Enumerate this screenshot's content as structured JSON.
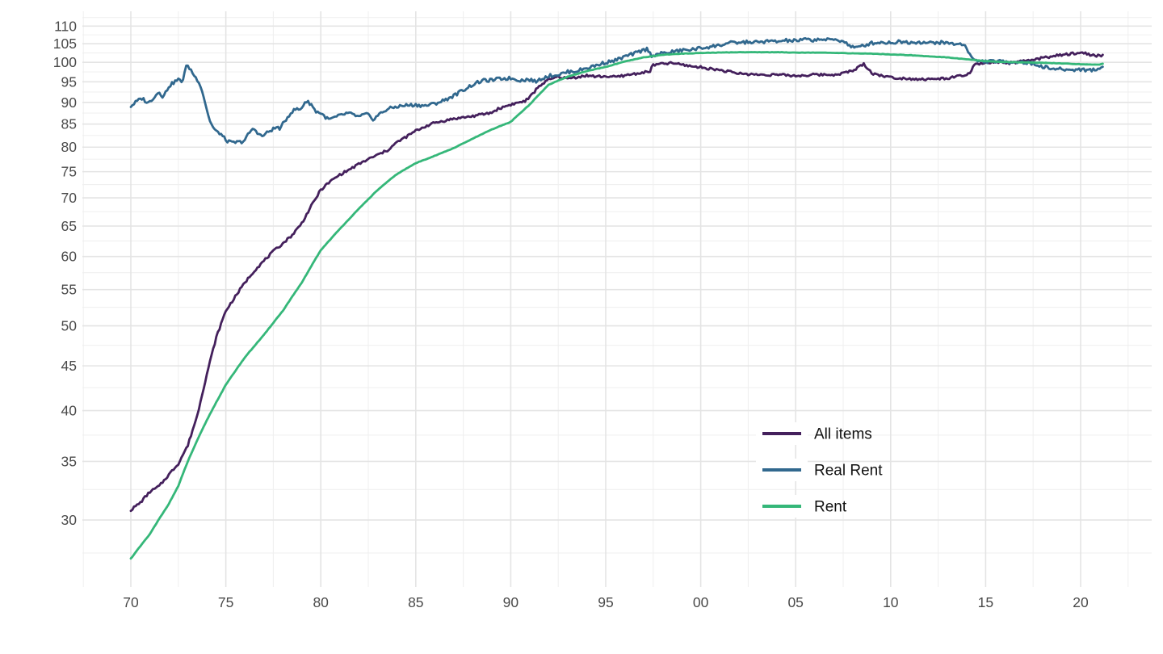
{
  "chart_data": {
    "type": "line",
    "title": "",
    "xlabel": "",
    "ylabel": "",
    "x_axis": {
      "tick_years": [
        1970,
        1975,
        1980,
        1985,
        1990,
        1995,
        2000,
        2005,
        2010,
        2015,
        2020
      ],
      "tick_labels": [
        "70",
        "75",
        "80",
        "85",
        "90",
        "95",
        "00",
        "05",
        "10",
        "15",
        "20"
      ],
      "minor_tick_years": [
        1967.5,
        1972.5,
        1977.5,
        1982.5,
        1987.5,
        1992.5,
        1997.5,
        2002.5,
        2007.5,
        2012.5,
        2017.5,
        2022.5
      ],
      "range": [
        1967.45,
        2023.55
      ]
    },
    "y_axis": {
      "scale": "log",
      "tick_values": [
        30,
        35,
        40,
        45,
        50,
        55,
        60,
        65,
        70,
        75,
        80,
        85,
        90,
        95,
        100,
        105,
        110
      ],
      "tick_labels": [
        "30",
        "35",
        "40",
        "45",
        "50",
        "55",
        "60",
        "65",
        "70",
        "75",
        "80",
        "85",
        "90",
        "95",
        "100",
        "105",
        "110"
      ],
      "minor_tick_values": [
        27.5,
        32.5,
        37.5,
        42.5,
        47.5,
        52.5,
        57.5,
        62.5,
        67.5,
        72.5,
        77.5,
        82.5,
        87.5,
        92.5,
        97.5,
        102.5,
        107.5,
        112.5
      ],
      "range": [
        25.2,
        115.9
      ]
    },
    "grid": {
      "major_color": "#e4e4e4",
      "minor_color": "#f0f0f0"
    },
    "axis_text_color": "#4a4a4a",
    "legend": {
      "position": "inside-right",
      "text_color": "#111111",
      "key_background": "#ffffff"
    },
    "series": [
      {
        "name": "All items",
        "color": "#44205c",
        "noise_pct": 0.32,
        "noise_seed": 7,
        "points": [
          [
            1970,
            30.8
          ],
          [
            1970.5,
            31.4
          ],
          [
            1971,
            32.3
          ],
          [
            1971.5,
            32.8
          ],
          [
            1972,
            33.8
          ],
          [
            1972.5,
            34.8
          ],
          [
            1973,
            36.5
          ],
          [
            1973.5,
            39.5
          ],
          [
            1974,
            44.0
          ],
          [
            1974.5,
            48.5
          ],
          [
            1975,
            52.0
          ],
          [
            1975.5,
            54.0
          ],
          [
            1976,
            56.0
          ],
          [
            1976.5,
            57.8
          ],
          [
            1977,
            59.3
          ],
          [
            1977.5,
            60.8
          ],
          [
            1978,
            62.1
          ],
          [
            1978.5,
            63.5
          ],
          [
            1979,
            65.5
          ],
          [
            1979.5,
            68.5
          ],
          [
            1980,
            71.5
          ],
          [
            1980.5,
            73.1
          ],
          [
            1981,
            74.4
          ],
          [
            1981.5,
            75.4
          ],
          [
            1982,
            76.5
          ],
          [
            1982.5,
            77.5
          ],
          [
            1983,
            78.4
          ],
          [
            1983.5,
            79.3
          ],
          [
            1984,
            81.0
          ],
          [
            1984.5,
            82.2
          ],
          [
            1985,
            83.5
          ],
          [
            1985.5,
            84.5
          ],
          [
            1986,
            85.3
          ],
          [
            1987,
            86.2
          ],
          [
            1988,
            86.8
          ],
          [
            1989,
            87.6
          ],
          [
            1989.3,
            88.4
          ],
          [
            1990,
            89.5
          ],
          [
            1990.75,
            90.3
          ],
          [
            1991,
            91.2
          ],
          [
            1991.5,
            94.0
          ],
          [
            1992,
            95.5
          ],
          [
            1992.5,
            96.3
          ],
          [
            1993,
            95.8
          ],
          [
            1993.5,
            96.2
          ],
          [
            1994,
            96.6
          ],
          [
            1994.5,
            96.3
          ],
          [
            1995,
            96.4
          ],
          [
            1995.5,
            96.2
          ],
          [
            1996,
            96.6
          ],
          [
            1996.5,
            97.0
          ],
          [
            1997,
            97.4
          ],
          [
            1997.3,
            97.5
          ],
          [
            1997.5,
            99.3
          ],
          [
            1998,
            99.6
          ],
          [
            1998.5,
            99.8
          ],
          [
            1999,
            99.4
          ],
          [
            1999.5,
            99.0
          ],
          [
            2000,
            98.7
          ],
          [
            2001,
            98.0
          ],
          [
            2002,
            97.1
          ],
          [
            2003,
            96.8
          ],
          [
            2004,
            96.8
          ],
          [
            2005,
            96.5
          ],
          [
            2006,
            96.8
          ],
          [
            2007,
            96.8
          ],
          [
            2007.5,
            97.2
          ],
          [
            2008,
            97.8
          ],
          [
            2008.6,
            99.6
          ],
          [
            2009,
            97.2
          ],
          [
            2009.5,
            96.6
          ],
          [
            2010,
            96.1
          ],
          [
            2011,
            95.8
          ],
          [
            2012,
            95.6
          ],
          [
            2013,
            95.9
          ],
          [
            2013.5,
            96.3
          ],
          [
            2014,
            96.8
          ],
          [
            2014.2,
            97.2
          ],
          [
            2014.4,
            99.3
          ],
          [
            2015,
            99.9
          ],
          [
            2015.5,
            100.0
          ],
          [
            2016,
            99.8
          ],
          [
            2016.5,
            99.9
          ],
          [
            2017,
            100.3
          ],
          [
            2017.5,
            100.6
          ],
          [
            2018,
            101.2
          ],
          [
            2018.5,
            101.6
          ],
          [
            2019,
            101.9
          ],
          [
            2019.8,
            102.5
          ],
          [
            2020.3,
            102.4
          ],
          [
            2020.8,
            101.6
          ],
          [
            2021,
            101.9
          ],
          [
            2021.17,
            101.8
          ]
        ]
      },
      {
        "name": "Real Rent",
        "color": "#31688e",
        "noise_pct": 0.45,
        "noise_seed": 3,
        "points": [
          [
            1970,
            89.1
          ],
          [
            1970.3,
            90.2
          ],
          [
            1970.6,
            91.0
          ],
          [
            1970.9,
            89.8
          ],
          [
            1971,
            90.2
          ],
          [
            1971.5,
            92.6
          ],
          [
            1971.7,
            91.2
          ],
          [
            1972,
            93.9
          ],
          [
            1972.3,
            95.0
          ],
          [
            1972.5,
            95.6
          ],
          [
            1972.7,
            94.8
          ],
          [
            1972.9,
            99.0
          ],
          [
            1973.1,
            98.5
          ],
          [
            1973.4,
            96.1
          ],
          [
            1973.6,
            95.0
          ],
          [
            1973.8,
            92.0
          ],
          [
            1974.1,
            86.5
          ],
          [
            1974.3,
            84.4
          ],
          [
            1974.5,
            83.3
          ],
          [
            1974.7,
            83.0
          ],
          [
            1974.9,
            82.0
          ],
          [
            1975,
            81.5
          ],
          [
            1975.3,
            80.9
          ],
          [
            1975.5,
            81.0
          ],
          [
            1975.8,
            81.1
          ],
          [
            1976,
            81.5
          ],
          [
            1976.3,
            83.5
          ],
          [
            1976.5,
            83.9
          ],
          [
            1976.9,
            82.2
          ],
          [
            1977,
            82.6
          ],
          [
            1977.4,
            83.7
          ],
          [
            1977.7,
            84.3
          ],
          [
            1977.9,
            84.0
          ],
          [
            1978,
            85.0
          ],
          [
            1978.4,
            87.5
          ],
          [
            1978.7,
            88.5
          ],
          [
            1978.9,
            88.2
          ],
          [
            1979,
            88.8
          ],
          [
            1979.2,
            90.3
          ],
          [
            1979.5,
            89.6
          ],
          [
            1979.7,
            88.0
          ],
          [
            1980,
            87.5
          ],
          [
            1980.4,
            86.0
          ],
          [
            1980.7,
            86.4
          ],
          [
            1981,
            86.9
          ],
          [
            1981.4,
            87.5
          ],
          [
            1981.8,
            87.0
          ],
          [
            1982,
            86.6
          ],
          [
            1982.4,
            87.3
          ],
          [
            1982.8,
            86.0
          ],
          [
            1983,
            87.0
          ],
          [
            1983.5,
            88.4
          ],
          [
            1984,
            89.0
          ],
          [
            1984.5,
            89.3
          ],
          [
            1985,
            89.4
          ],
          [
            1985.5,
            89.2
          ],
          [
            1986,
            89.7
          ],
          [
            1986.5,
            90.5
          ],
          [
            1987,
            91.6
          ],
          [
            1987.5,
            93.0
          ],
          [
            1988,
            94.3
          ],
          [
            1988.5,
            95.3
          ],
          [
            1989,
            95.4
          ],
          [
            1989.5,
            95.8
          ],
          [
            1990,
            95.9
          ],
          [
            1990.5,
            95.4
          ],
          [
            1991,
            95.6
          ],
          [
            1991.3,
            95.0
          ],
          [
            1991.6,
            95.8
          ],
          [
            1992,
            96.5
          ],
          [
            1992.5,
            96.8
          ],
          [
            1993,
            97.5
          ],
          [
            1993.5,
            97.8
          ],
          [
            1994,
            98.5
          ],
          [
            1994.5,
            99.2
          ],
          [
            1995,
            100.0
          ],
          [
            1995.5,
            100.5
          ],
          [
            1996,
            101.5
          ],
          [
            1996.5,
            102.3
          ],
          [
            1997,
            103.3
          ],
          [
            1997.2,
            103.6
          ],
          [
            1997.4,
            101.8
          ],
          [
            1997.6,
            102.0
          ],
          [
            1998,
            102.4
          ],
          [
            1998.5,
            102.8
          ],
          [
            1999,
            103.2
          ],
          [
            1999.5,
            103.4
          ],
          [
            2000,
            103.8
          ],
          [
            2000.5,
            104.2
          ],
          [
            2001,
            104.6
          ],
          [
            2001.5,
            105.2
          ],
          [
            2002,
            105.3
          ],
          [
            2002.5,
            105.5
          ],
          [
            2003,
            105.4
          ],
          [
            2003.5,
            105.7
          ],
          [
            2004,
            105.6
          ],
          [
            2004.5,
            105.9
          ],
          [
            2005,
            105.8
          ],
          [
            2005.5,
            106.2
          ],
          [
            2006,
            106.0
          ],
          [
            2006.3,
            106.4
          ],
          [
            2006.6,
            106.0
          ],
          [
            2007,
            106.2
          ],
          [
            2007.5,
            105.8
          ],
          [
            2007.8,
            104.6
          ],
          [
            2008.2,
            103.8
          ],
          [
            2008.5,
            104.4
          ],
          [
            2009,
            105.2
          ],
          [
            2009.5,
            105.4
          ],
          [
            2010,
            105.3
          ],
          [
            2010.5,
            105.6
          ],
          [
            2011,
            105.4
          ],
          [
            2011.5,
            105.5
          ],
          [
            2012,
            105.2
          ],
          [
            2012.5,
            105.4
          ],
          [
            2013,
            105.2
          ],
          [
            2013.5,
            104.9
          ],
          [
            2013.9,
            104.8
          ],
          [
            2014.3,
            100.9
          ],
          [
            2014.5,
            100.4
          ],
          [
            2015,
            100.2
          ],
          [
            2015.5,
            100.3
          ],
          [
            2016,
            100.1
          ],
          [
            2016.5,
            100.2
          ],
          [
            2017,
            100.0
          ],
          [
            2017.5,
            99.6
          ],
          [
            2018,
            98.9
          ],
          [
            2018.5,
            98.3
          ],
          [
            2019,
            98.2
          ],
          [
            2019.5,
            98.0
          ],
          [
            2020,
            98.2
          ],
          [
            2020.5,
            97.9
          ],
          [
            2021,
            98.4
          ],
          [
            2021.17,
            98.8
          ]
        ]
      },
      {
        "name": "Rent",
        "color": "#35b779",
        "noise_pct": 0.05,
        "noise_seed": 11,
        "points": [
          [
            1970,
            27.1
          ],
          [
            1971,
            28.9
          ],
          [
            1972,
            31.3
          ],
          [
            1972.5,
            32.8
          ],
          [
            1973,
            35.0
          ],
          [
            1974,
            39.0
          ],
          [
            1975,
            42.8
          ],
          [
            1976,
            46.0
          ],
          [
            1977,
            48.8
          ],
          [
            1978,
            52.0
          ],
          [
            1979,
            56.0
          ],
          [
            1980,
            61.0
          ],
          [
            1981,
            64.5
          ],
          [
            1982,
            68.0
          ],
          [
            1983,
            71.5
          ],
          [
            1984,
            74.5
          ],
          [
            1985,
            76.7
          ],
          [
            1986,
            78.2
          ],
          [
            1987,
            79.8
          ],
          [
            1988,
            81.8
          ],
          [
            1989,
            83.8
          ],
          [
            1990,
            85.5
          ],
          [
            1991,
            89.5
          ],
          [
            1992,
            94.3
          ],
          [
            1993,
            96.3
          ],
          [
            1994,
            97.7
          ],
          [
            1995,
            98.8
          ],
          [
            1996,
            100.2
          ],
          [
            1997,
            101.3
          ],
          [
            1998,
            102.0
          ],
          [
            1999,
            102.3
          ],
          [
            2000,
            102.5
          ],
          [
            2001,
            102.6
          ],
          [
            2002,
            102.7
          ],
          [
            2003,
            102.7
          ],
          [
            2004,
            102.7
          ],
          [
            2005,
            102.6
          ],
          [
            2006,
            102.6
          ],
          [
            2007,
            102.5
          ],
          [
            2008,
            102.4
          ],
          [
            2009,
            102.3
          ],
          [
            2010,
            102.1
          ],
          [
            2011,
            101.9
          ],
          [
            2012,
            101.6
          ],
          [
            2013,
            101.3
          ],
          [
            2014,
            100.8
          ],
          [
            2015,
            100.3
          ],
          [
            2016,
            100.1
          ],
          [
            2017,
            100.0
          ],
          [
            2018,
            99.9
          ],
          [
            2019,
            99.7
          ],
          [
            2020,
            99.5
          ],
          [
            2021,
            99.4
          ],
          [
            2021.17,
            99.6
          ]
        ]
      }
    ]
  }
}
